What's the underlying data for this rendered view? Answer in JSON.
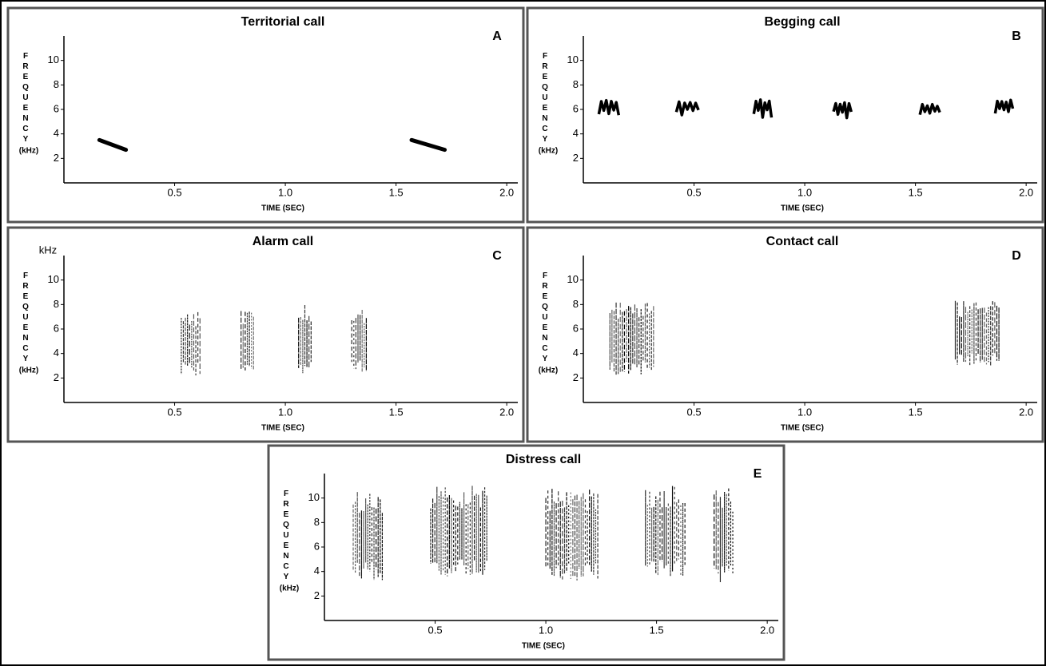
{
  "chart_data": [
    {
      "type": "spectrogram",
      "style": "trace",
      "title": "Territorial call",
      "panel_label": "A",
      "xlabel": "TIME (SEC)",
      "ylabel": "FREQUENCY",
      "yunit": "(kHz)",
      "xlim": [
        0,
        2.05
      ],
      "ylim": [
        0,
        12
      ],
      "xticks": [
        0.5,
        {
          "value": 1.0,
          "label": "1.0"
        },
        1.5,
        {
          "value": 2.0,
          "label": "2.0"
        }
      ],
      "yticks": [
        2,
        4,
        6,
        8,
        10
      ],
      "calls": [
        {
          "start": 0.16,
          "end": 0.28,
          "low": 2.7,
          "high": 3.5
        },
        {
          "start": 1.57,
          "end": 1.72,
          "low": 2.7,
          "high": 3.5
        }
      ]
    },
    {
      "type": "spectrogram",
      "style": "wave",
      "title": "Begging call",
      "panel_label": "B",
      "xlabel": "TIME (SEC)",
      "ylabel": "FREQUENCY",
      "yunit": "(kHz)",
      "xlim": [
        0,
        2.05
      ],
      "ylim": [
        0,
        12
      ],
      "xticks": [
        0.5,
        {
          "value": 1.0,
          "label": "1.0"
        },
        1.5,
        {
          "value": 2.0,
          "label": "2.0"
        }
      ],
      "yticks": [
        2,
        4,
        6,
        8,
        10
      ],
      "calls": [
        {
          "start": 0.07,
          "end": 0.16,
          "low": 5.2,
          "high": 6.8
        },
        {
          "start": 0.42,
          "end": 0.52,
          "low": 5.4,
          "high": 6.7
        },
        {
          "start": 0.77,
          "end": 0.85,
          "low": 5.3,
          "high": 6.8
        },
        {
          "start": 1.13,
          "end": 1.21,
          "low": 5.3,
          "high": 6.6
        },
        {
          "start": 1.52,
          "end": 1.61,
          "low": 5.3,
          "high": 6.5
        },
        {
          "start": 1.86,
          "end": 1.94,
          "low": 5.6,
          "high": 6.8
        }
      ]
    },
    {
      "type": "spectrogram",
      "style": "blotch",
      "title": "Alarm call",
      "panel_label": "C",
      "xlabel": "TIME (SEC)",
      "ylabel": "FREQUENCY",
      "yunit": "(kHz)",
      "ytop_label": "kHz",
      "xlim": [
        0,
        2.05
      ],
      "ylim": [
        0,
        12
      ],
      "xticks": [
        0.5,
        {
          "value": 1.0,
          "label": "1.0"
        },
        1.5,
        {
          "value": 2.0,
          "label": "2.0"
        }
      ],
      "yticks": [
        2,
        4,
        6,
        8,
        10
      ],
      "calls": [
        {
          "start": 0.53,
          "end": 0.62,
          "low": 2.2,
          "high": 7.5
        },
        {
          "start": 0.8,
          "end": 0.86,
          "low": 2.6,
          "high": 7.5
        },
        {
          "start": 1.06,
          "end": 1.12,
          "low": 2.3,
          "high": 8
        },
        {
          "start": 1.3,
          "end": 1.37,
          "low": 2.3,
          "high": 7.8
        }
      ]
    },
    {
      "type": "spectrogram",
      "style": "blotch",
      "title": "Contact call",
      "panel_label": "D",
      "xlabel": "TIME (SEC)",
      "ylabel": "FREQUENCY",
      "yunit": "(kHz)",
      "xlim": [
        0,
        2.05
      ],
      "ylim": [
        0,
        12
      ],
      "xticks": [
        0.5,
        {
          "value": 1.0,
          "label": "1.0"
        },
        1.5,
        {
          "value": 2.0,
          "label": "2.0"
        }
      ],
      "yticks": [
        2,
        4,
        6,
        8,
        10
      ],
      "calls": [
        {
          "start": 0.12,
          "end": 0.32,
          "low": 2.2,
          "high": 8.2
        },
        {
          "start": 1.68,
          "end": 1.88,
          "low": 3,
          "high": 8.3
        }
      ]
    },
    {
      "type": "spectrogram",
      "style": "blotch",
      "title": "Distress call",
      "panel_label": "E",
      "xlabel": "TIME (SEC)",
      "ylabel": "FREQUENCY",
      "yunit": "(kHz)",
      "xlim": [
        0,
        2.05
      ],
      "ylim": [
        0,
        12
      ],
      "xticks": [
        0.5,
        {
          "value": 1.0,
          "label": "1.0"
        },
        1.5,
        {
          "value": 2.0,
          "label": "2.0"
        }
      ],
      "yticks": [
        2,
        4,
        6,
        8,
        10
      ],
      "calls": [
        {
          "start": 0.13,
          "end": 0.27,
          "low": 3.3,
          "high": 10.5
        },
        {
          "start": 0.48,
          "end": 0.74,
          "low": 3.5,
          "high": 11
        },
        {
          "start": 1.0,
          "end": 1.24,
          "low": 3.2,
          "high": 10.8
        },
        {
          "start": 1.45,
          "end": 1.63,
          "low": 3.5,
          "high": 11
        },
        {
          "start": 1.76,
          "end": 1.85,
          "low": 3,
          "high": 10.8
        }
      ]
    }
  ]
}
